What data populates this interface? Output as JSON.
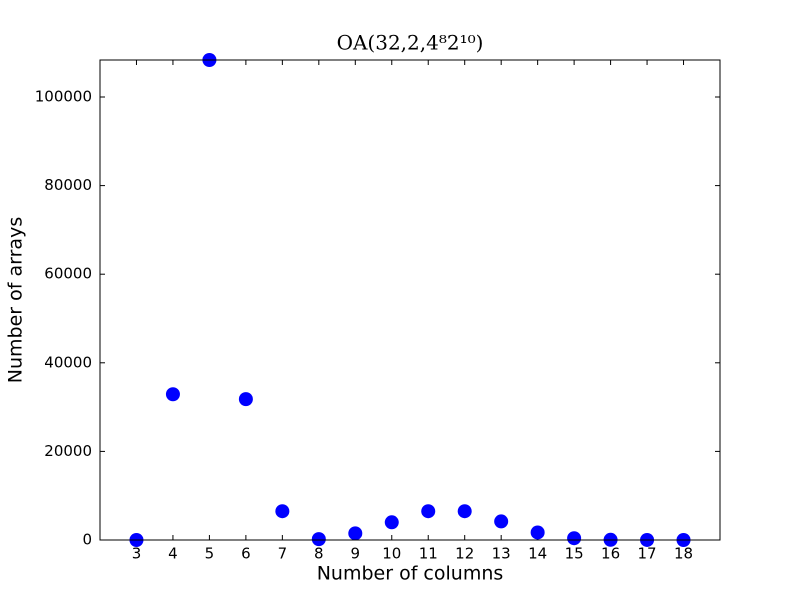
{
  "chart_data": {
    "type": "scatter",
    "title": "OA(32,2,4⁸2¹⁰)",
    "x_label": "Number of columns",
    "y_label": "Number of arrays",
    "x": [
      3,
      4,
      5,
      6,
      7,
      8,
      9,
      10,
      11,
      12,
      13,
      14,
      15,
      16,
      17,
      18
    ],
    "values": [
      0,
      32900,
      108352,
      31800,
      6500,
      200,
      1500,
      4000,
      6500,
      6500,
      4200,
      1700,
      400,
      50,
      10,
      1
    ],
    "color": "#0000ff",
    "xlim": [
      2,
      19
    ],
    "xticks": [
      3,
      4,
      5,
      6,
      7,
      8,
      9,
      10,
      11,
      12,
      13,
      14,
      15,
      16,
      17,
      18
    ],
    "ylim": [
      0,
      108352
    ],
    "yticks": [
      0,
      20000,
      40000,
      60000,
      80000,
      100000
    ]
  }
}
